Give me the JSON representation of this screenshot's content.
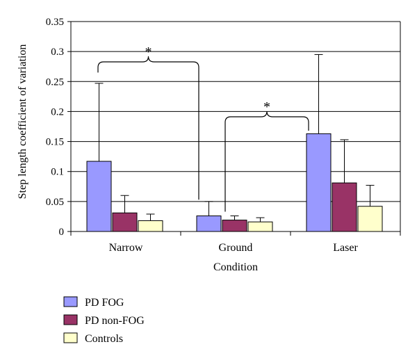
{
  "chart_data": {
    "type": "bar",
    "title": "",
    "xlabel": "Condition",
    "ylabel": "Step length coefficient of variation",
    "categories": [
      "Narrow",
      "Ground",
      "Laser"
    ],
    "ylim": [
      0,
      0.35
    ],
    "yticks": [
      0,
      0.05,
      0.1,
      0.15,
      0.2,
      0.25,
      0.3,
      0.35
    ],
    "ytick_labels": [
      "0",
      "0.05",
      "0.1",
      "0.15",
      "0.2",
      "0.25",
      "0.3",
      "0.35"
    ],
    "grid": "horizontal",
    "legend_position": "bottom-left",
    "series": [
      {
        "name": "PD FOG",
        "color": "#9999ff",
        "values": [
          0.117,
          0.026,
          0.163
        ],
        "errors": [
          0.13,
          0.024,
          0.132
        ]
      },
      {
        "name": "PD non-FOG",
        "color": "#993366",
        "values": [
          0.031,
          0.019,
          0.081
        ],
        "errors": [
          0.029,
          0.007,
          0.072
        ]
      },
      {
        "name": "Controls",
        "color": "#ffffcc",
        "values": [
          0.018,
          0.016,
          0.042
        ],
        "errors": [
          0.011,
          0.007,
          0.035
        ]
      }
    ],
    "annotations": [
      {
        "text": "*",
        "from_category": "Narrow",
        "to_category": "Ground"
      },
      {
        "text": "*",
        "from_category": "Ground",
        "to_category": "Laser"
      }
    ]
  }
}
